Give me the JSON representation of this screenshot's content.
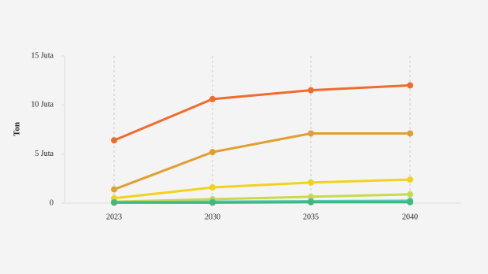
{
  "chart_data": {
    "type": "line",
    "y_label": "Ton",
    "categories": [
      "2023",
      "2030",
      "2035",
      "2040"
    ],
    "series": [
      {
        "color": "#ef6c2e",
        "values": [
          6.4,
          10.6,
          11.5,
          12.0
        ]
      },
      {
        "color": "#e0a030",
        "values": [
          1.4,
          5.2,
          7.1,
          7.1
        ]
      },
      {
        "color": "#f2d21e",
        "values": [
          0.5,
          1.6,
          2.1,
          2.4
        ]
      },
      {
        "color": "#c9d94f",
        "values": [
          0.15,
          0.4,
          0.65,
          0.9
        ]
      },
      {
        "color": "#5cc6c0",
        "values": [
          0.1,
          0.15,
          0.2,
          0.25
        ]
      },
      {
        "color": "#3fb87f",
        "values": [
          0.05,
          0.05,
          0.1,
          0.1
        ]
      }
    ],
    "ylim": [
      0,
      15
    ],
    "yticks": [
      0,
      {
        "value": 5,
        "label": "5 Juta"
      },
      {
        "value": 10,
        "label": "10 Juta"
      },
      {
        "value": 15,
        "label": "15 Juta"
      }
    ],
    "x_grid": true
  }
}
